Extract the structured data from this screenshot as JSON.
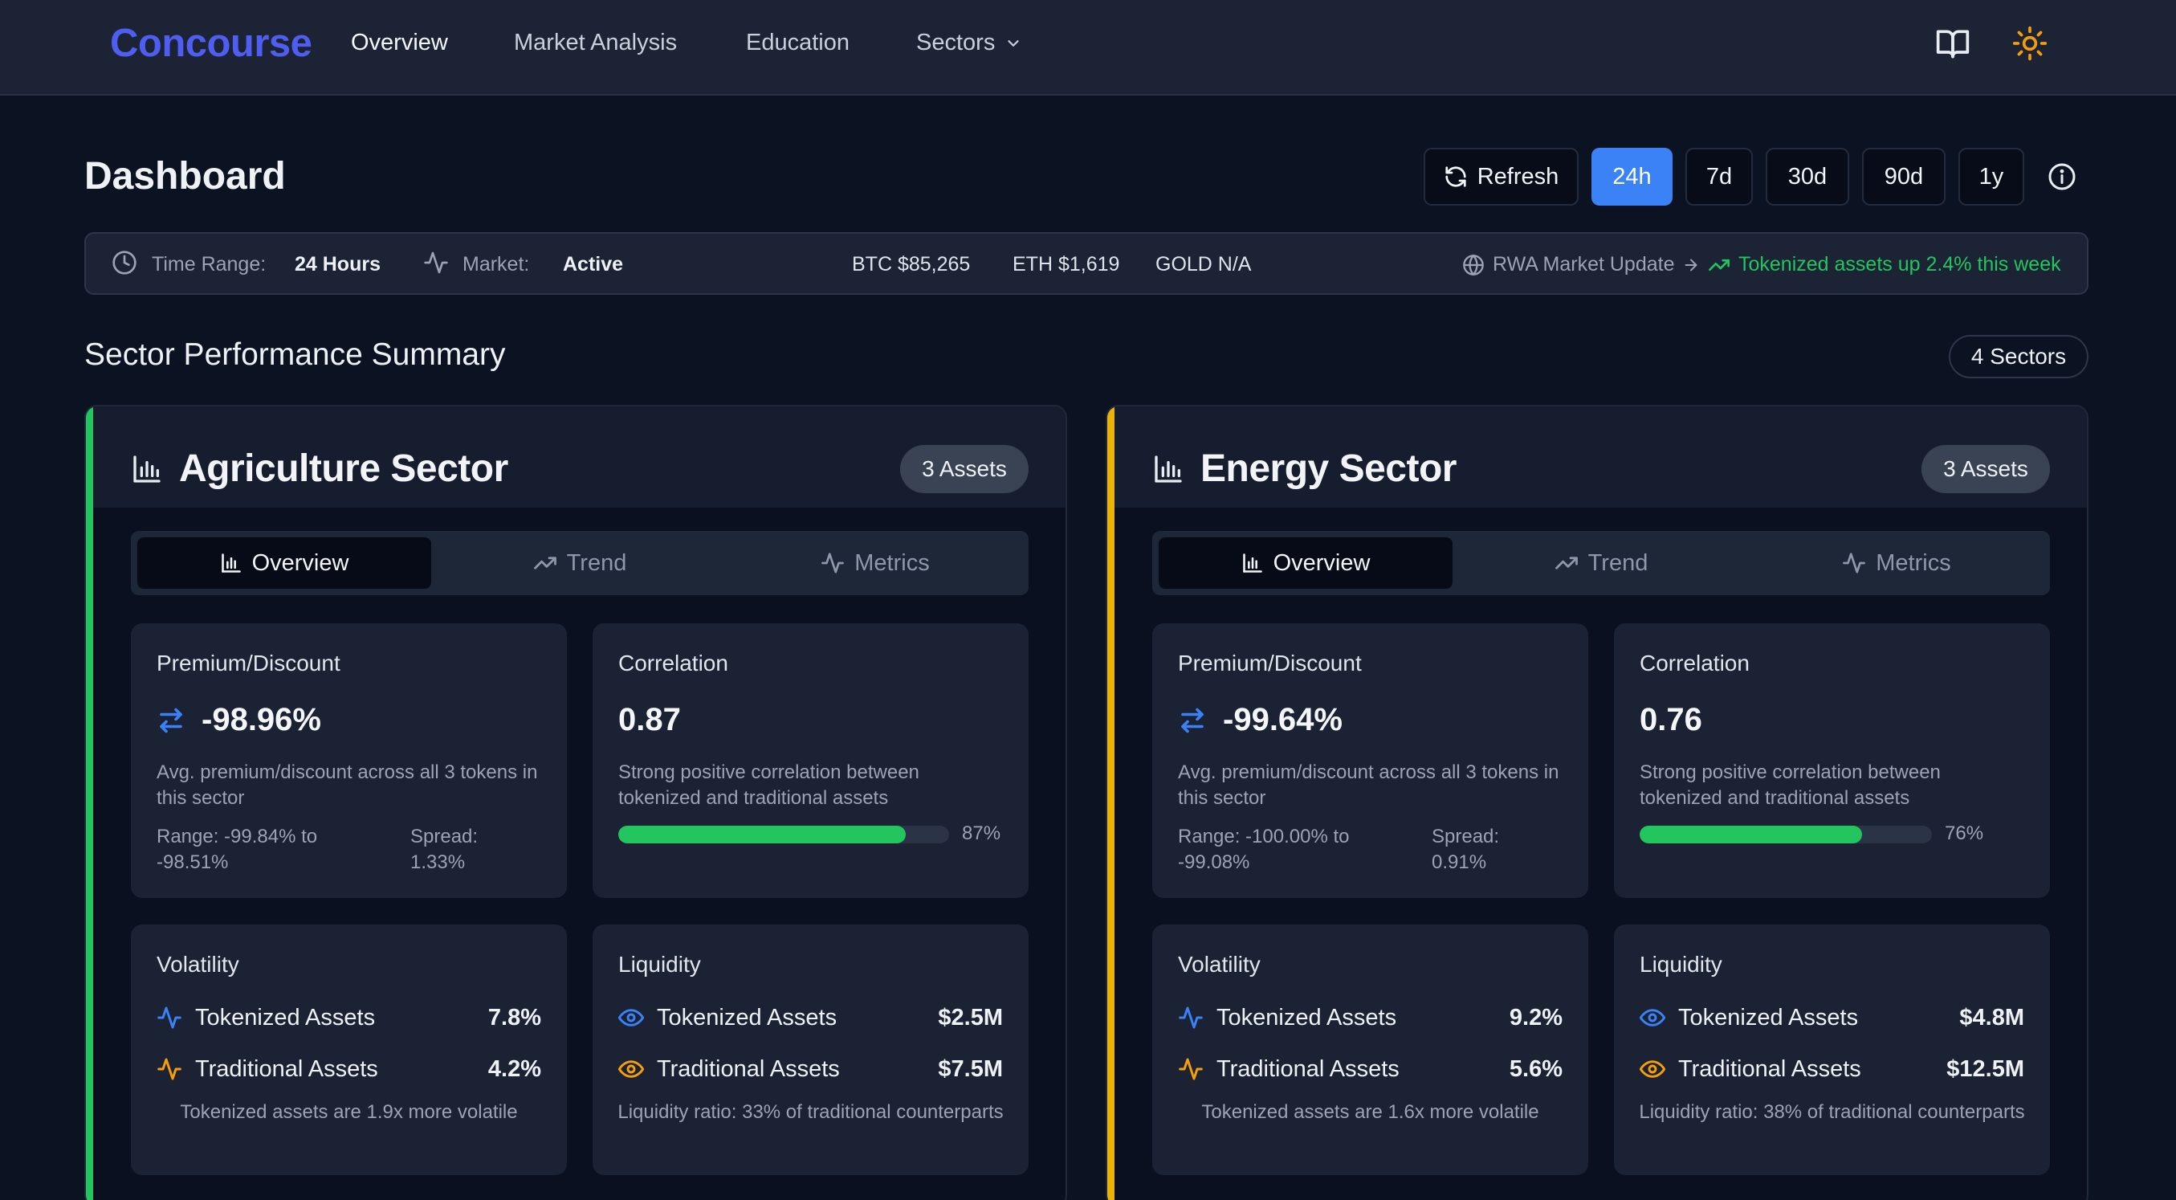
{
  "nav": {
    "brand": "Concourse",
    "links": [
      "Overview",
      "Market Analysis",
      "Education",
      "Sectors"
    ],
    "icons": [
      "book-icon",
      "sun-icon"
    ]
  },
  "header": {
    "title": "Dashboard",
    "refresh_label": "Refresh",
    "ranges": [
      "24h",
      "7d",
      "30d",
      "90d",
      "1y"
    ],
    "active_range": "24h"
  },
  "status": {
    "time_range_label": "Time Range:",
    "time_range_value": "24 Hours",
    "market_label": "Market:",
    "market_value": "Active",
    "btc": "BTC $85,265",
    "eth": "ETH $1,619",
    "gold": "GOLD N/A",
    "rwa_update": "RWA Market Update",
    "rwa_trend": "Tokenized assets up 2.4% this week"
  },
  "section": {
    "title": "Sector Performance Summary",
    "count": "4 Sectors"
  },
  "sectors": [
    {
      "title": "Agriculture Sector",
      "assets": "3 Assets",
      "accent": "#22c55e",
      "tabs": [
        "Overview",
        "Trend",
        "Metrics"
      ],
      "premium": {
        "label": "Premium/Discount",
        "value": "-98.96%",
        "desc": "Avg. premium/discount across all 3 tokens in this sector",
        "range": "Range: -99.84% to -98.51%",
        "spread": "Spread: 1.33%"
      },
      "correlation": {
        "label": "Correlation",
        "value": "0.87",
        "desc": "Strong positive correlation between tokenized and traditional assets",
        "fill": 0.87,
        "pct": "87%"
      },
      "volatility": {
        "label": "Volatility",
        "tokenized_label": "Tokenized Assets",
        "tokenized_value": "7.8%",
        "traditional_label": "Traditional Assets",
        "traditional_value": "4.2%",
        "note": "Tokenized assets are 1.9x more volatile"
      },
      "liquidity": {
        "label": "Liquidity",
        "tokenized_label": "Tokenized Assets",
        "tokenized_value": "$2.5M",
        "traditional_label": "Traditional Assets",
        "traditional_value": "$7.5M",
        "note": "Liquidity ratio: 33% of traditional counterparts"
      }
    },
    {
      "title": "Energy Sector",
      "assets": "3 Assets",
      "accent": "#eab308",
      "tabs": [
        "Overview",
        "Trend",
        "Metrics"
      ],
      "premium": {
        "label": "Premium/Discount",
        "value": "-99.64%",
        "desc": "Avg. premium/discount across all 3 tokens in this sector",
        "range": "Range: -100.00% to -99.08%",
        "spread": "Spread: 0.91%"
      },
      "correlation": {
        "label": "Correlation",
        "value": "0.76",
        "desc": "Strong positive correlation between tokenized and traditional assets",
        "fill": 0.76,
        "pct": "76%"
      },
      "volatility": {
        "label": "Volatility",
        "tokenized_label": "Tokenized Assets",
        "tokenized_value": "9.2%",
        "traditional_label": "Traditional Assets",
        "traditional_value": "5.6%",
        "note": "Tokenized assets are 1.6x more volatile"
      },
      "liquidity": {
        "label": "Liquidity",
        "tokenized_label": "Tokenized Assets",
        "tokenized_value": "$4.8M",
        "traditional_label": "Traditional Assets",
        "traditional_value": "$12.5M",
        "note": "Liquidity ratio: 38% of traditional counterparts"
      }
    }
  ],
  "colors": {
    "brand": "#4f5ef0",
    "active_range": "#3b82f6",
    "positive": "#22c55e",
    "blue_icon": "#3b82f6",
    "orange_icon": "#f59e0b"
  }
}
